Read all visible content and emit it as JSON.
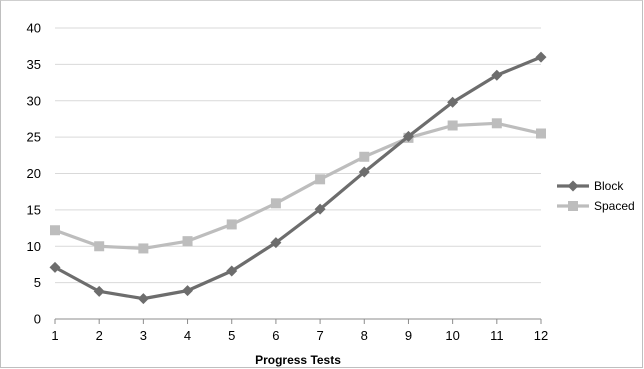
{
  "chart_data": {
    "type": "line",
    "title": "",
    "xlabel": "Progress Tests",
    "ylabel": "",
    "x": [
      1,
      2,
      3,
      4,
      5,
      6,
      7,
      8,
      9,
      10,
      11,
      12
    ],
    "ylim": [
      0,
      40
    ],
    "yticks": [
      0,
      5,
      10,
      15,
      20,
      25,
      30,
      35,
      40
    ],
    "grid": true,
    "legend_position": "right",
    "series": [
      {
        "name": "Block",
        "color": "#6d6d6d",
        "marker": "diamond",
        "values": [
          7.1,
          3.8,
          2.8,
          3.9,
          6.6,
          10.5,
          15.1,
          20.2,
          25.1,
          29.8,
          33.5,
          36.0
        ]
      },
      {
        "name": "Spaced",
        "color": "#bdbdbd",
        "marker": "square",
        "values": [
          12.2,
          10.0,
          9.7,
          10.7,
          13.0,
          15.9,
          19.2,
          22.3,
          24.9,
          26.6,
          26.9,
          25.5
        ]
      }
    ]
  }
}
